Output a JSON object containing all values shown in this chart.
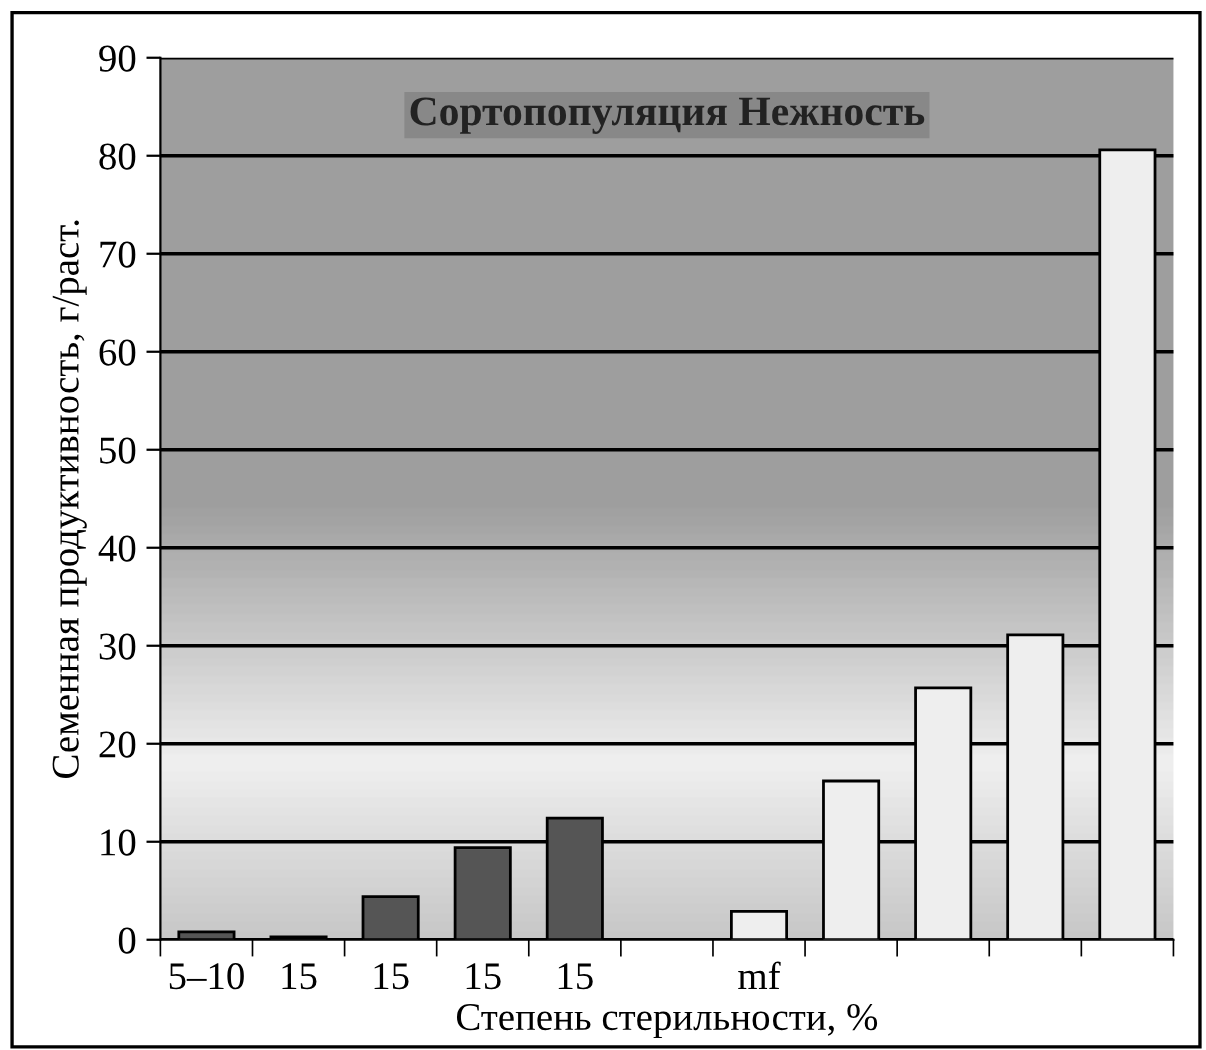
{
  "chart_data": {
    "type": "bar",
    "title": "Сортопопуляция Нежность",
    "xlabel": "Степень стерильности, %",
    "ylabel": "Семенная продуктивность, г/раст.",
    "categories": [
      "5–10",
      "15",
      "15",
      "15",
      "15",
      null,
      "mf",
      null,
      null,
      null,
      null
    ],
    "values": [
      0.8,
      0.3,
      4.4,
      9.4,
      12.4,
      null,
      2.9,
      16.2,
      25.7,
      31.1,
      80.6
    ],
    "colors": [
      "#555555",
      "#555555",
      "#555555",
      "#555555",
      "#555555",
      "#555555",
      "#eeeeee",
      "#eeeeee",
      "#eeeeee",
      "#eeeeee",
      "#eeeeee"
    ],
    "ylim": [
      0,
      90
    ],
    "yticks": [
      0,
      10,
      20,
      30,
      40,
      50,
      60,
      70,
      80,
      90
    ],
    "grid": "y",
    "legend": false
  }
}
